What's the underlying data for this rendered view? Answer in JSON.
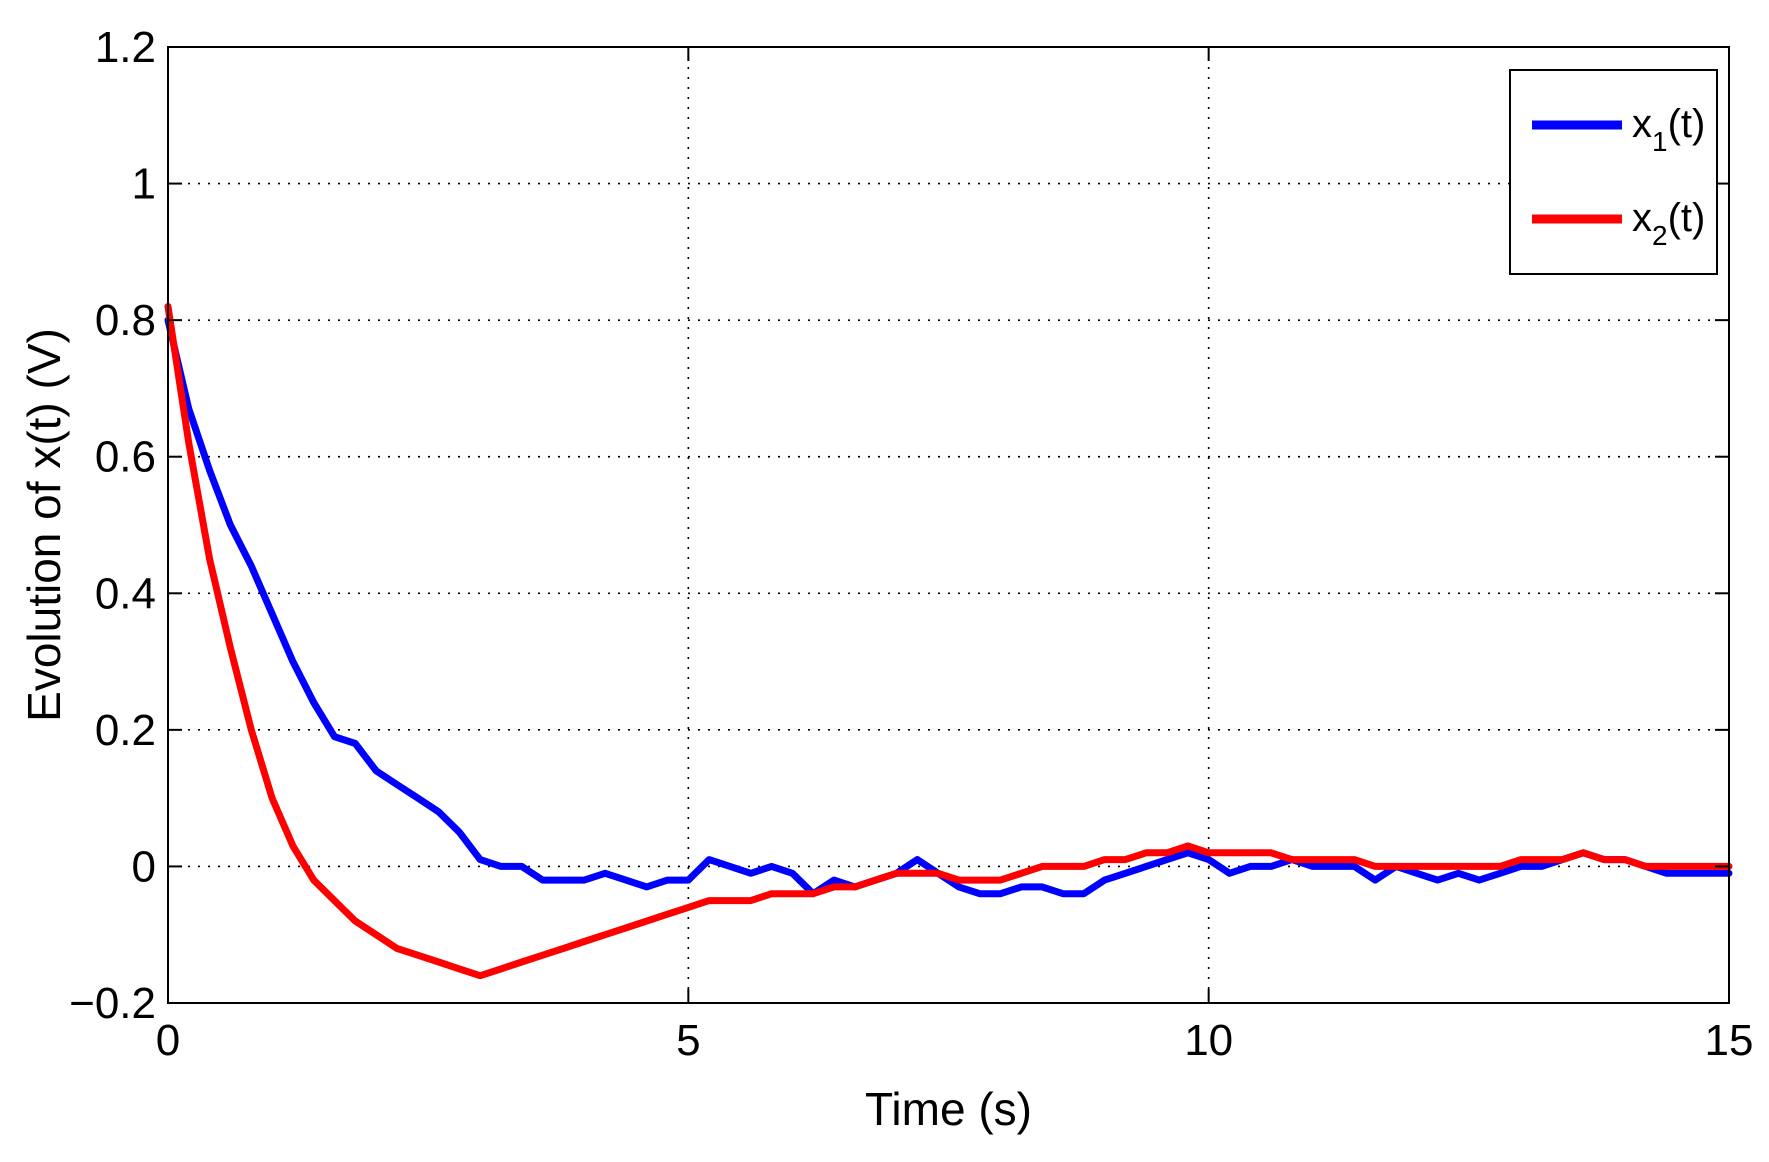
{
  "chart_data": {
    "type": "line",
    "xlabel": "Time (s)",
    "ylabel": "Evolution of x(t)  (V)",
    "xlim": [
      0,
      15
    ],
    "ylim": [
      -0.2,
      1.2
    ],
    "xticks": [
      0,
      5,
      10,
      15
    ],
    "yticks": [
      -0.2,
      0,
      0.2,
      0.4,
      0.6,
      0.8,
      1,
      1.2
    ],
    "xtick_labels": [
      "0",
      "5",
      "10",
      "15"
    ],
    "ytick_labels": [
      "−0.2",
      "0",
      "0.2",
      "0.4",
      "0.6",
      "0.8",
      "1",
      "1.2"
    ],
    "grid": true,
    "legend_position": "top-right",
    "series": [
      {
        "name": "x1(t)",
        "legend": {
          "base": "x",
          "sub": "1",
          "tail": "(t)"
        },
        "color": "#0000ff",
        "x": [
          0,
          0.2,
          0.4,
          0.6,
          0.8,
          1.0,
          1.2,
          1.4,
          1.6,
          1.8,
          2.0,
          2.2,
          2.4,
          2.6,
          2.8,
          3.0,
          3.2,
          3.4,
          3.6,
          3.8,
          4.0,
          4.2,
          4.4,
          4.6,
          4.8,
          5.0,
          5.2,
          5.4,
          5.6,
          5.8,
          6.0,
          6.2,
          6.4,
          6.6,
          6.8,
          7.0,
          7.2,
          7.4,
          7.6,
          7.8,
          8.0,
          8.2,
          8.4,
          8.6,
          8.8,
          9.0,
          9.2,
          9.4,
          9.6,
          9.8,
          10.0,
          10.2,
          10.4,
          10.6,
          10.8,
          11.0,
          11.2,
          11.4,
          11.6,
          11.8,
          12.0,
          12.2,
          12.4,
          12.6,
          12.8,
          13.0,
          13.2,
          13.4,
          13.6,
          13.8,
          14.0,
          14.2,
          14.4,
          14.6,
          14.8,
          15.0
        ],
        "y": [
          0.8,
          0.67,
          0.58,
          0.5,
          0.44,
          0.37,
          0.3,
          0.24,
          0.19,
          0.18,
          0.14,
          0.12,
          0.1,
          0.08,
          0.05,
          0.01,
          0.0,
          0.0,
          -0.02,
          -0.02,
          -0.02,
          -0.01,
          -0.02,
          -0.03,
          -0.02,
          -0.02,
          0.01,
          0.0,
          -0.01,
          0.0,
          -0.01,
          -0.04,
          -0.02,
          -0.03,
          -0.02,
          -0.01,
          0.01,
          -0.01,
          -0.03,
          -0.04,
          -0.04,
          -0.03,
          -0.03,
          -0.04,
          -0.04,
          -0.02,
          -0.01,
          0.0,
          0.01,
          0.02,
          0.01,
          -0.01,
          0.0,
          0.0,
          0.01,
          0.0,
          0.0,
          0.0,
          -0.02,
          0.0,
          -0.01,
          -0.02,
          -0.01,
          -0.02,
          -0.01,
          0.0,
          0.0,
          0.01,
          0.02,
          0.01,
          0.01,
          0.0,
          -0.01,
          -0.01,
          -0.01,
          -0.01
        ]
      },
      {
        "name": "x2(t)",
        "legend": {
          "base": "x",
          "sub": "2",
          "tail": "(t)"
        },
        "color": "#ff0000",
        "x": [
          0,
          0.2,
          0.4,
          0.6,
          0.8,
          1.0,
          1.2,
          1.4,
          1.6,
          1.8,
          2.0,
          2.2,
          2.4,
          2.6,
          2.8,
          3.0,
          3.2,
          3.4,
          3.6,
          3.8,
          4.0,
          4.2,
          4.4,
          4.6,
          4.8,
          5.0,
          5.2,
          5.4,
          5.6,
          5.8,
          6.0,
          6.2,
          6.4,
          6.6,
          6.8,
          7.0,
          7.2,
          7.4,
          7.6,
          7.8,
          8.0,
          8.2,
          8.4,
          8.6,
          8.8,
          9.0,
          9.2,
          9.4,
          9.6,
          9.8,
          10.0,
          10.2,
          10.4,
          10.6,
          10.8,
          11.0,
          11.2,
          11.4,
          11.6,
          11.8,
          12.0,
          12.2,
          12.4,
          12.6,
          12.8,
          13.0,
          13.2,
          13.4,
          13.6,
          13.8,
          14.0,
          14.2,
          14.4,
          14.6,
          14.8,
          15.0
        ],
        "y": [
          0.82,
          0.62,
          0.45,
          0.32,
          0.2,
          0.1,
          0.03,
          -0.02,
          -0.05,
          -0.08,
          -0.1,
          -0.12,
          -0.13,
          -0.14,
          -0.15,
          -0.16,
          -0.15,
          -0.14,
          -0.13,
          -0.12,
          -0.11,
          -0.1,
          -0.09,
          -0.08,
          -0.07,
          -0.06,
          -0.05,
          -0.05,
          -0.05,
          -0.04,
          -0.04,
          -0.04,
          -0.03,
          -0.03,
          -0.02,
          -0.01,
          -0.01,
          -0.01,
          -0.02,
          -0.02,
          -0.02,
          -0.01,
          0.0,
          0.0,
          0.0,
          0.01,
          0.01,
          0.02,
          0.02,
          0.03,
          0.02,
          0.02,
          0.02,
          0.02,
          0.01,
          0.01,
          0.01,
          0.01,
          0.0,
          0.0,
          0.0,
          0.0,
          0.0,
          0.0,
          0.0,
          0.01,
          0.01,
          0.01,
          0.02,
          0.01,
          0.01,
          0.0,
          0.0,
          0.0,
          0.0,
          0.0
        ]
      }
    ]
  }
}
